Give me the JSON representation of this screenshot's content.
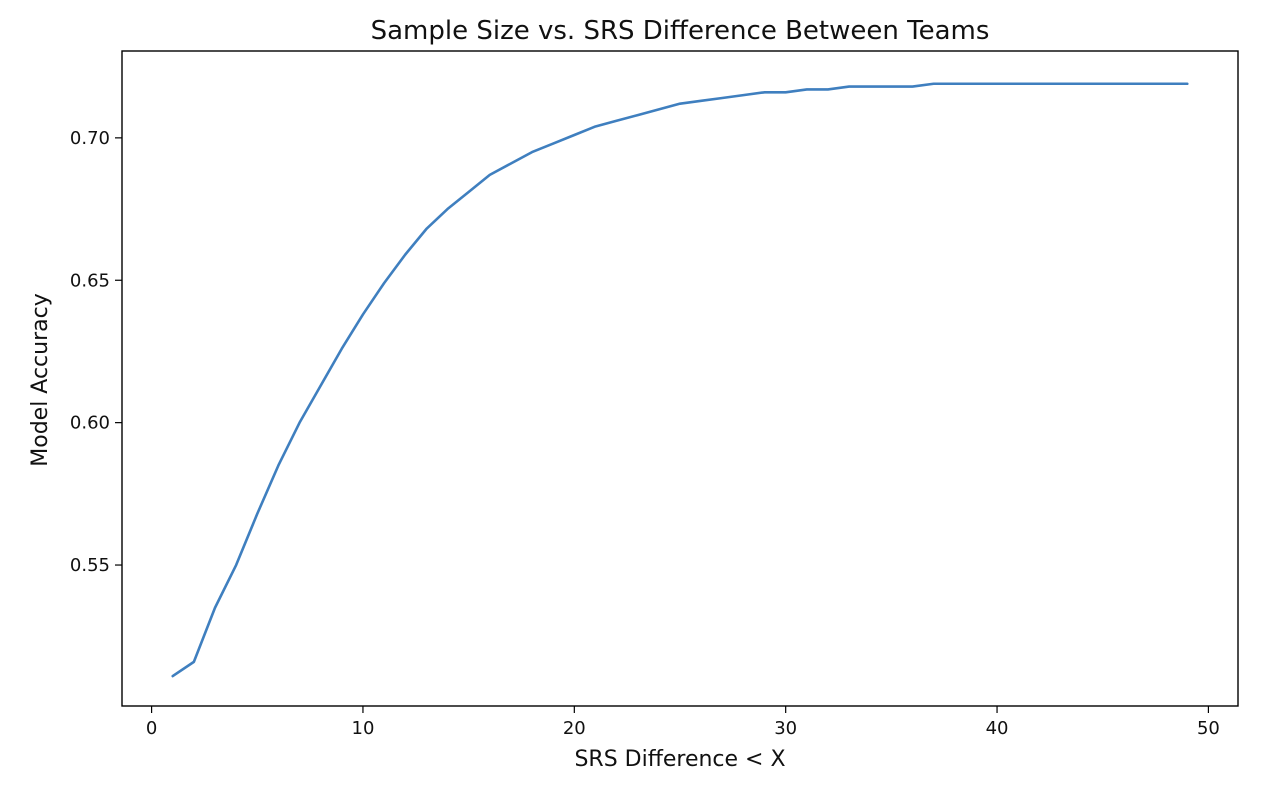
{
  "chart_data": {
    "type": "line",
    "title": "Sample Size vs. SRS Difference Between Teams",
    "xlabel": "SRS Difference < X",
    "ylabel": "Model Accuracy",
    "xlim": [
      -1.4,
      51.4
    ],
    "ylim": [
      0.5005,
      0.7305
    ],
    "xticks": [
      0,
      10,
      20,
      30,
      40,
      50
    ],
    "xtick_labels": [
      "0",
      "10",
      "20",
      "30",
      "40",
      "50"
    ],
    "yticks": [
      0.55,
      0.6,
      0.65,
      0.7
    ],
    "ytick_labels": [
      "0.55",
      "0.60",
      "0.65",
      "0.70"
    ],
    "grid": false,
    "series": [
      {
        "color": "#3f7fbf",
        "x": [
          1,
          2,
          3,
          4,
          5,
          6,
          7,
          8,
          9,
          10,
          11,
          12,
          13,
          14,
          15,
          16,
          17,
          18,
          19,
          20,
          21,
          22,
          23,
          24,
          25,
          26,
          27,
          28,
          29,
          30,
          31,
          32,
          33,
          34,
          35,
          36,
          37,
          38,
          39,
          40,
          41,
          42,
          43,
          44,
          45,
          46,
          47,
          48,
          49
        ],
        "y": [
          0.511,
          0.516,
          0.535,
          0.55,
          0.568,
          0.585,
          0.6,
          0.613,
          0.626,
          0.638,
          0.649,
          0.659,
          0.668,
          0.675,
          0.681,
          0.687,
          0.691,
          0.695,
          0.698,
          0.701,
          0.704,
          0.706,
          0.708,
          0.71,
          0.712,
          0.713,
          0.714,
          0.715,
          0.716,
          0.716,
          0.717,
          0.717,
          0.718,
          0.718,
          0.718,
          0.718,
          0.719,
          0.719,
          0.719,
          0.719,
          0.719,
          0.719,
          0.719,
          0.719,
          0.719,
          0.719,
          0.719,
          0.719,
          0.719
        ]
      }
    ]
  }
}
